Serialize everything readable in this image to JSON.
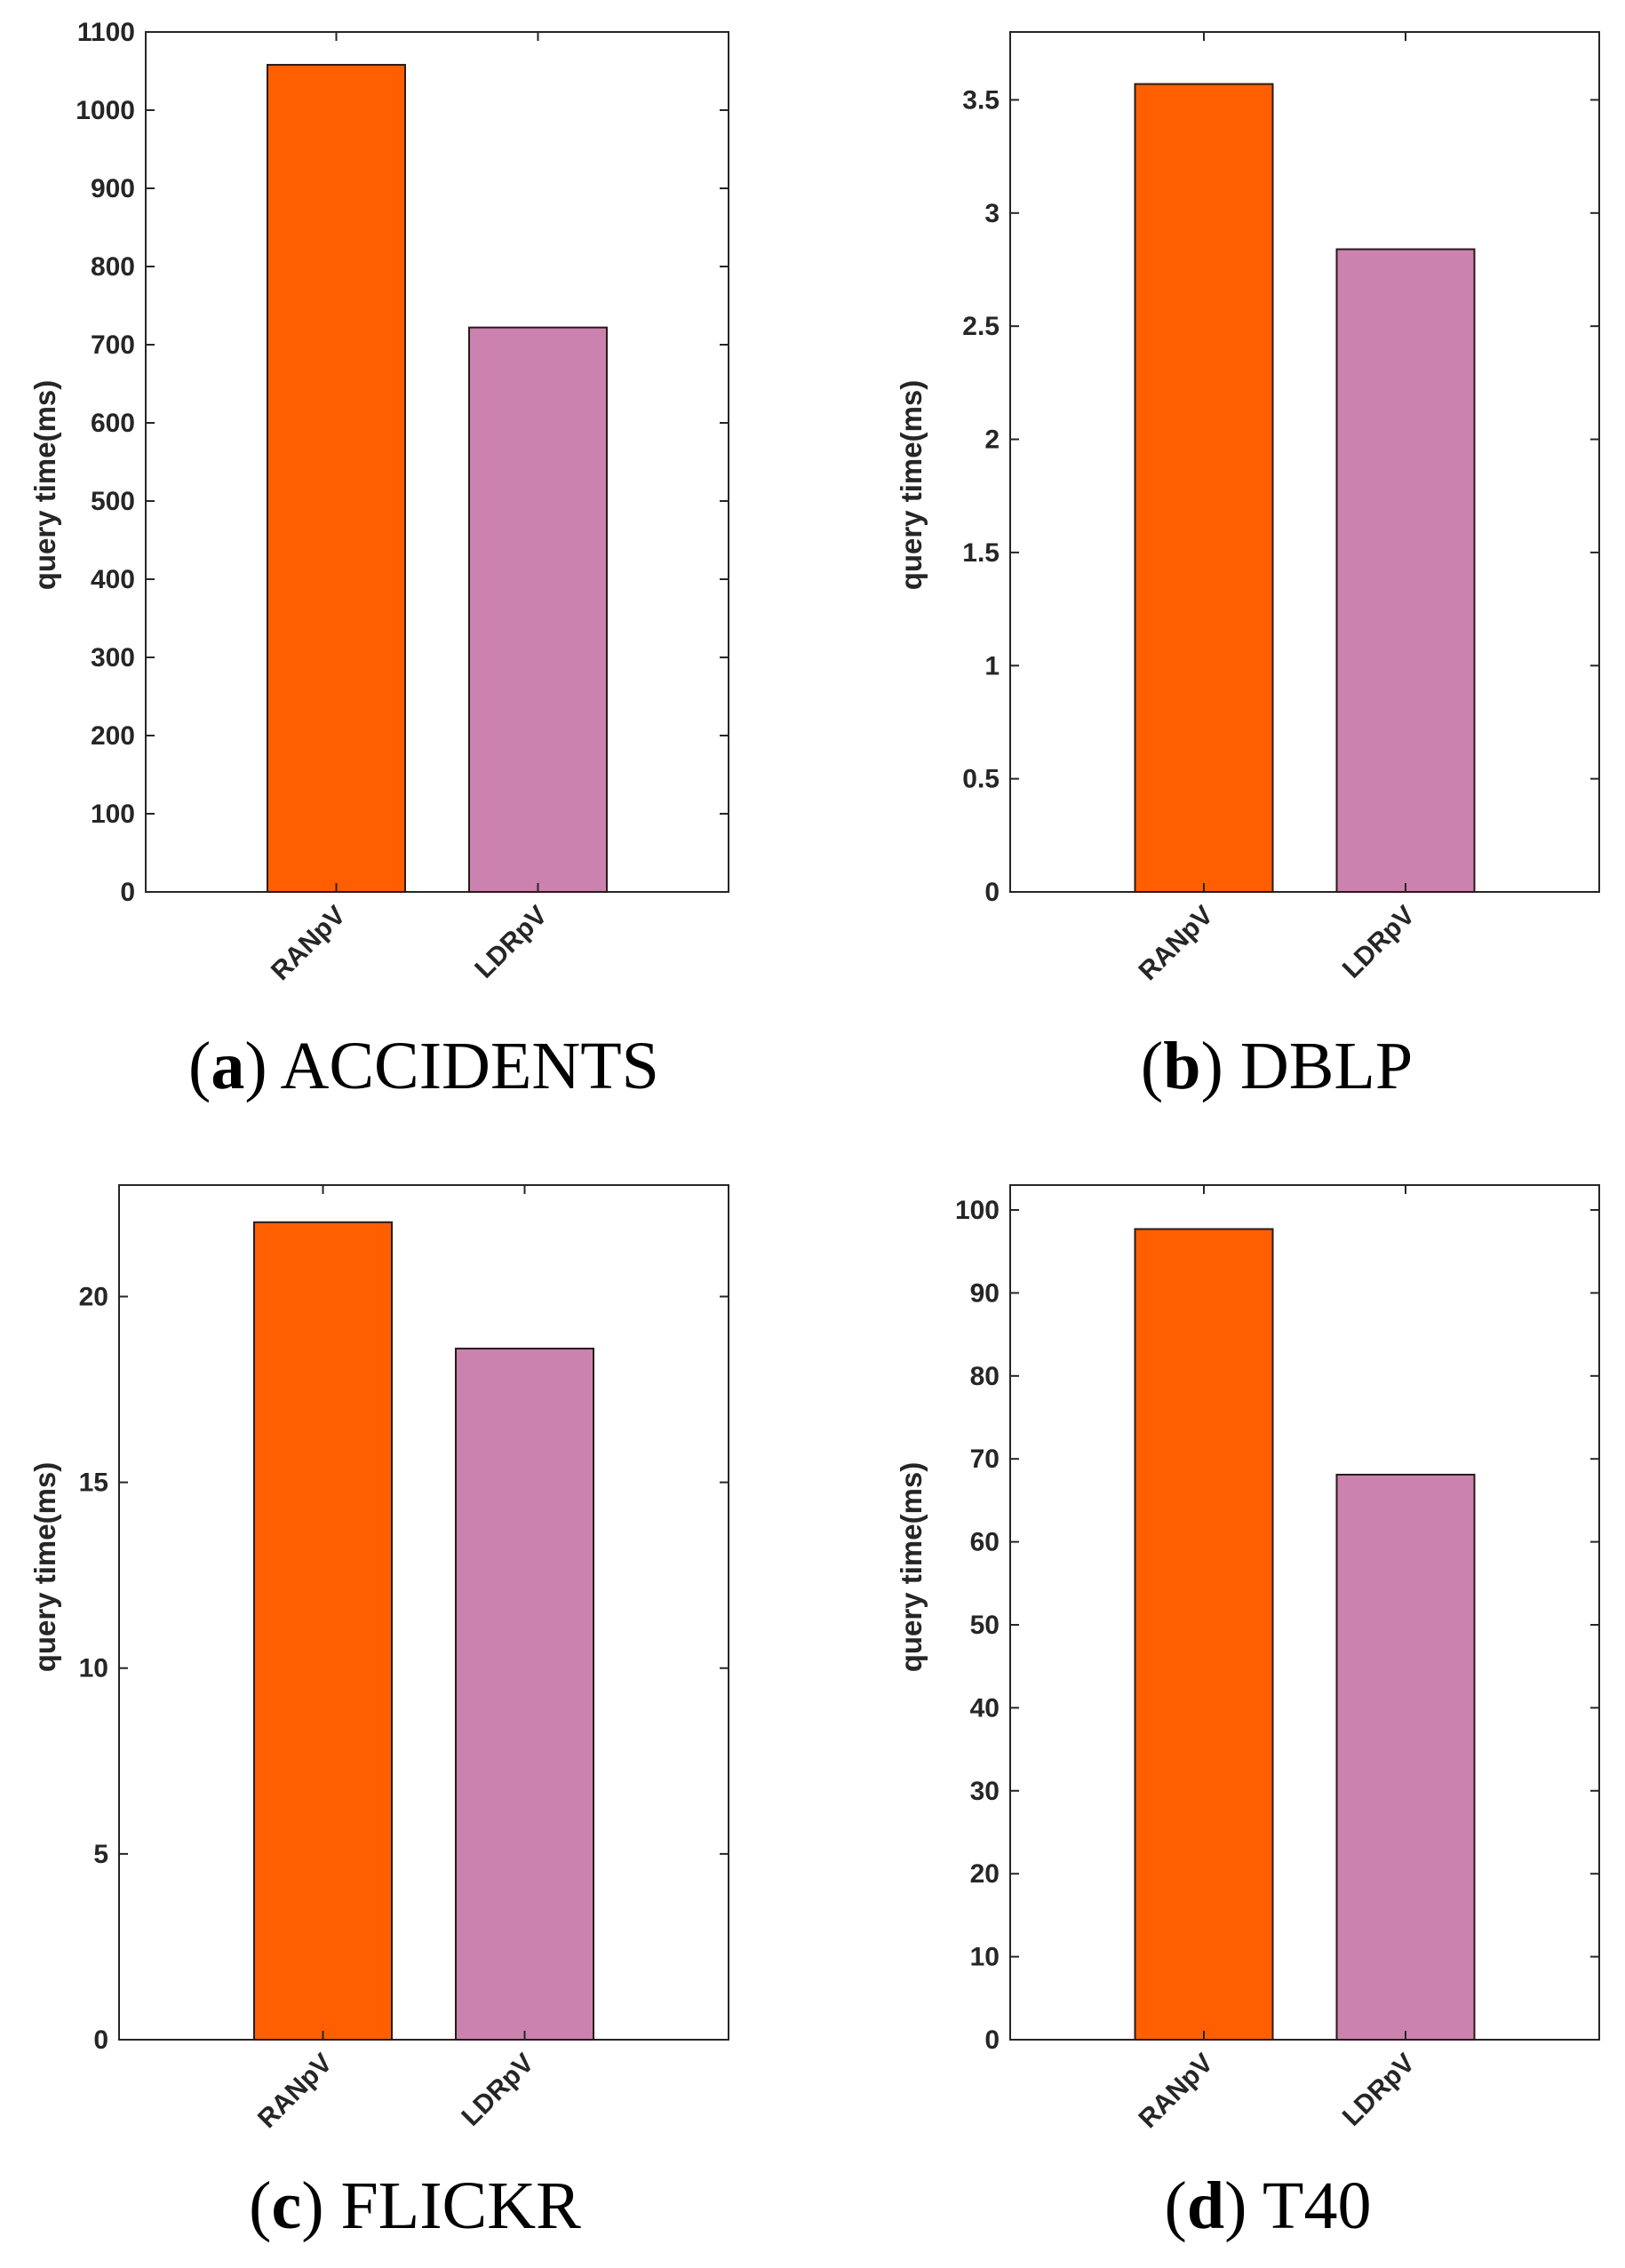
{
  "figure": {
    "bar_colors": [
      "#FF5F00",
      "#CB82AE"
    ],
    "charts": [
      {
        "panel_letter": "a",
        "panel_name": "ACCIDENTS",
        "caption": {
          "open": "(",
          "letter": "a",
          "close": ")",
          "name": "ACCIDENTS"
        }
      },
      {
        "panel_letter": "b",
        "panel_name": "DBLP",
        "caption": {
          "open": "(",
          "letter": "b",
          "close": ")",
          "name": "DBLP"
        }
      },
      {
        "panel_letter": "c",
        "panel_name": "FLICKR",
        "caption": {
          "open": "(",
          "letter": "c",
          "close": ")",
          "name": "FLICKR"
        }
      },
      {
        "panel_letter": "d",
        "panel_name": "T40",
        "caption": {
          "open": "(",
          "letter": "d",
          "close": ")",
          "name": "T40"
        }
      }
    ]
  },
  "chart_data": [
    {
      "type": "bar",
      "title": "(a) ACCIDENTS",
      "categories": [
        "RANpV",
        "LDRpV"
      ],
      "values": [
        1058,
        722
      ],
      "xlabel": "",
      "ylabel": "query time(ms)",
      "ylim": [
        0,
        1100
      ],
      "yticks": [
        0,
        100,
        200,
        300,
        400,
        500,
        600,
        700,
        800,
        900,
        1000,
        1100
      ],
      "ytick_labels": [
        "0",
        "100",
        "200",
        "300",
        "400",
        "500",
        "600",
        "700",
        "800",
        "900",
        "1000",
        "1100"
      ],
      "grid": false
    },
    {
      "type": "bar",
      "title": "(b) DBLP",
      "categories": [
        "RANpV",
        "LDRpV"
      ],
      "values": [
        3.57,
        2.84
      ],
      "xlabel": "",
      "ylabel": "query time(ms)",
      "ylim": [
        0,
        3.8
      ],
      "yticks": [
        0,
        0.5,
        1,
        1.5,
        2,
        2.5,
        3,
        3.5
      ],
      "ytick_labels": [
        "0",
        "0.5",
        "1",
        "1.5",
        "2",
        "2.5",
        "3",
        "3.5"
      ],
      "grid": false
    },
    {
      "type": "bar",
      "title": "(c) FLICKR",
      "categories": [
        "RANpV",
        "LDRpV"
      ],
      "values": [
        22.0,
        18.6
      ],
      "xlabel": "",
      "ylabel": "query time(ms)",
      "ylim": [
        0,
        23
      ],
      "yticks": [
        0,
        5,
        10,
        15,
        20
      ],
      "ytick_labels": [
        "0",
        "5",
        "10",
        "15",
        "20"
      ],
      "grid": false
    },
    {
      "type": "bar",
      "title": "(d) T40",
      "categories": [
        "RANpV",
        "LDRpV"
      ],
      "values": [
        97.7,
        68.1
      ],
      "xlabel": "",
      "ylabel": "query time(ms)",
      "ylim": [
        0,
        103
      ],
      "yticks": [
        0,
        10,
        20,
        30,
        40,
        50,
        60,
        70,
        80,
        90,
        100
      ],
      "ytick_labels": [
        "0",
        "10",
        "20",
        "30",
        "40",
        "50",
        "60",
        "70",
        "80",
        "90",
        "100"
      ],
      "grid": false
    }
  ]
}
